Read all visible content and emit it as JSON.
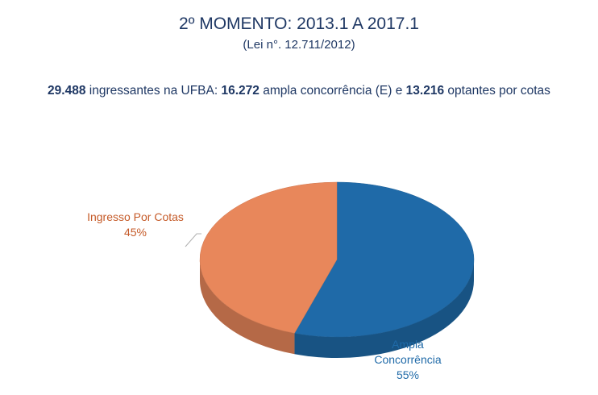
{
  "header": {
    "title": "2º MOMENTO: 2013.1 A 2017.1",
    "subtitle": "(Lei n°. 12.711/2012)"
  },
  "summary": {
    "total": "29.488",
    "text1": " ingressantes na UFBA: ",
    "ampla": "16.272",
    "text2": " ampla concorrência (E) e ",
    "cotas": "13.216",
    "text3": " optantes por cotas"
  },
  "chart_data": {
    "type": "pie",
    "title": "",
    "slices": [
      {
        "name": "Ampla Concorrência",
        "value": 55,
        "label_lines": [
          "Ampla",
          "Concorrência"
        ],
        "percent_label": "55%",
        "color": "#1f6aa8"
      },
      {
        "name": "Ingresso Por Cotas",
        "value": 45,
        "label_lines": [
          "Ingresso Por Cotas"
        ],
        "percent_label": "45%",
        "color": "#e8875b"
      }
    ],
    "style": "3d"
  }
}
